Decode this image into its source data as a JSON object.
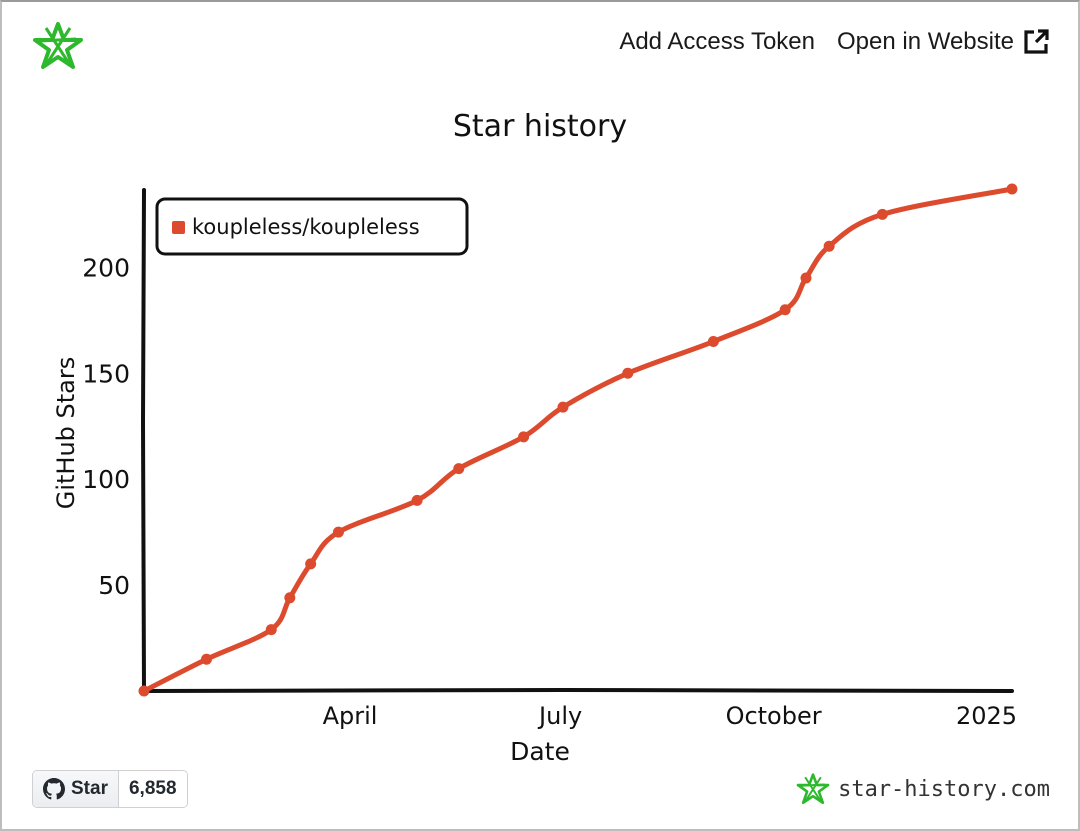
{
  "header": {
    "add_token_label": "Add Access Token",
    "open_website_label": "Open in Website",
    "logo_icon": "star-logo-icon",
    "external_icon": "external-link-icon"
  },
  "colors": {
    "series": "#dd4b2f",
    "logo_green": "#2db82d",
    "axis": "#111111"
  },
  "footer": {
    "star_label": "Star",
    "star_count": "6,858",
    "site_label": "star-history.com"
  },
  "chart_data": {
    "type": "line",
    "title": "Star history",
    "xlabel": "Date",
    "ylabel": "GitHub Stars",
    "x_ticks": [
      "April",
      "July",
      "October",
      "2025"
    ],
    "y_ticks": [
      50,
      100,
      150,
      200
    ],
    "ylim": [
      0,
      237
    ],
    "xlim": [
      "2024-01-03",
      "2025-01-12"
    ],
    "legend": "top-left",
    "series": [
      {
        "name": "koupleless/koupleless",
        "x": [
          "2024-01-03",
          "2024-01-30",
          "2024-02-27",
          "2024-03-06",
          "2024-03-15",
          "2024-03-27",
          "2024-04-30",
          "2024-05-18",
          "2024-06-15",
          "2024-07-02",
          "2024-07-30",
          "2024-09-05",
          "2024-10-06",
          "2024-10-15",
          "2024-10-25",
          "2024-11-17",
          "2025-01-12"
        ],
        "values": [
          0,
          15,
          29,
          44,
          60,
          75,
          90,
          105,
          120,
          134,
          150,
          165,
          180,
          195,
          210,
          225,
          237
        ]
      }
    ]
  }
}
